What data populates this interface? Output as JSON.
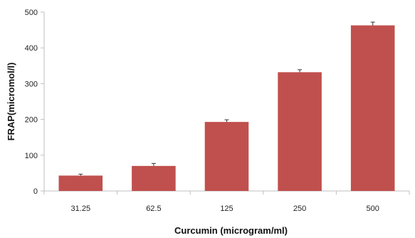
{
  "chart_data": {
    "type": "bar",
    "title": "",
    "xlabel": "Curcumin (microgram/ml)",
    "ylabel": "FRAP(micromol/l)",
    "categories": [
      "31.25",
      "62.5",
      "125",
      "250",
      "500"
    ],
    "values": [
      43,
      70,
      193,
      332,
      463
    ],
    "errors": [
      4,
      7,
      6,
      7,
      9
    ],
    "ylim": [
      0,
      500
    ],
    "yticks": [
      0,
      100,
      200,
      300,
      400,
      500
    ],
    "grid": false,
    "legend": "none",
    "colors": {
      "bar": "#c0504d",
      "error": "#333333",
      "axis": "#bfbfbf"
    }
  }
}
